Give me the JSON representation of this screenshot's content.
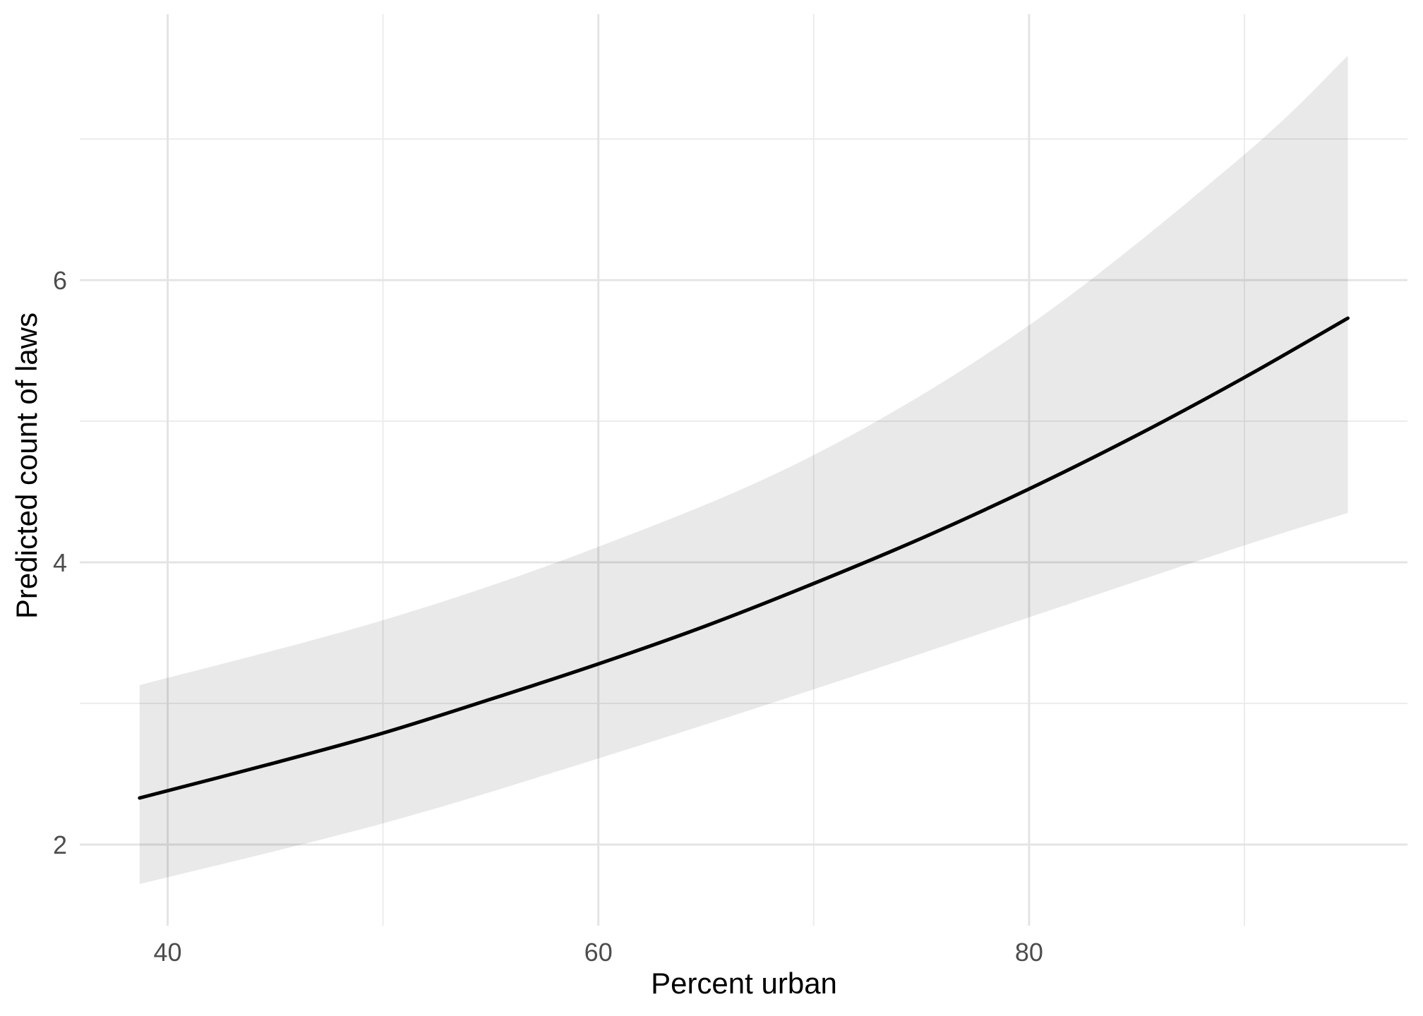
{
  "chart_data": {
    "type": "line",
    "title": "",
    "xlabel": "Percent urban",
    "ylabel": "Predicted count of laws",
    "xlim": [
      35.92,
      97.57
    ],
    "ylim": [
      1.425,
      7.885
    ],
    "x_ticks": [
      {
        "value": 40,
        "label": "40"
      },
      {
        "value": 60,
        "label": "60"
      },
      {
        "value": 80,
        "label": "80"
      }
    ],
    "x_minor_ticks": [
      50,
      70,
      90
    ],
    "y_ticks": [
      {
        "value": 2,
        "label": "2"
      },
      {
        "value": 4,
        "label": "4"
      },
      {
        "value": 6,
        "label": "6"
      }
    ],
    "y_minor_ticks": [
      3,
      5,
      7
    ],
    "grid": "major+minor",
    "legend": "none",
    "series": [
      {
        "name": "predicted-count",
        "kind": "line",
        "color": "#000000",
        "x": [
          38.7,
          45,
          50,
          55,
          60,
          65,
          70,
          75,
          80,
          85,
          90,
          94.8
        ],
        "y": [
          2.33,
          2.58,
          2.79,
          3.03,
          3.28,
          3.55,
          3.85,
          4.17,
          4.52,
          4.9,
          5.31,
          5.73
        ]
      },
      {
        "name": "confidence-band",
        "kind": "ribbon",
        "fill": "#E8E8E8",
        "x": [
          38.7,
          50,
          60,
          70,
          80,
          90,
          94.8
        ],
        "y_lower": [
          1.72,
          2.15,
          2.61,
          3.1,
          3.61,
          4.12,
          4.35
        ],
        "y_upper": [
          3.13,
          3.59,
          4.11,
          4.76,
          5.68,
          6.89,
          7.59
        ]
      }
    ],
    "colors": {
      "background": "#FFFFFF",
      "line": "#000000",
      "ribbon": "#E8E8E8",
      "grid_major": "#E4E4E4",
      "grid_minor": "#ECECEC",
      "tick_text": "#4D4D4D",
      "title_text": "#000000"
    }
  }
}
